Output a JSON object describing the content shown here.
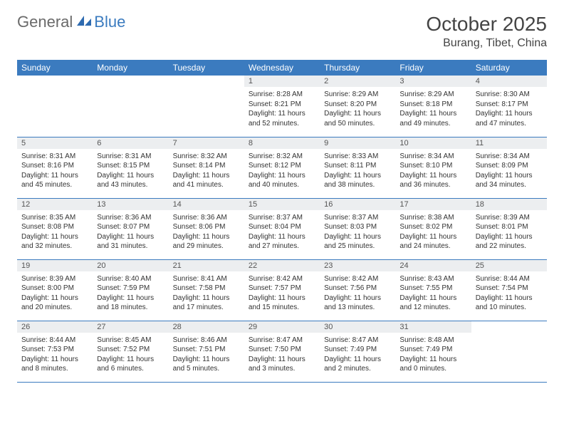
{
  "brand": {
    "part1": "General",
    "part2": "Blue"
  },
  "title": "October 2025",
  "location": "Burang, Tibet, China",
  "colors": {
    "header_bg": "#3b7bbf",
    "header_text": "#ffffff",
    "daynum_bg": "#eceef0",
    "border": "#3b7bbf",
    "text": "#333333",
    "logo_gray": "#6a6a6a",
    "logo_blue": "#3b7bbf",
    "page_bg": "#ffffff"
  },
  "fonts": {
    "title_size_pt": 21,
    "location_size_pt": 12,
    "dayheader_size_pt": 9,
    "cell_size_pt": 7.5
  },
  "day_headers": [
    "Sunday",
    "Monday",
    "Tuesday",
    "Wednesday",
    "Thursday",
    "Friday",
    "Saturday"
  ],
  "weeks": [
    [
      {
        "n": "",
        "sunrise": "",
        "sunset": "",
        "daylight": ""
      },
      {
        "n": "",
        "sunrise": "",
        "sunset": "",
        "daylight": ""
      },
      {
        "n": "",
        "sunrise": "",
        "sunset": "",
        "daylight": ""
      },
      {
        "n": "1",
        "sunrise": "Sunrise: 8:28 AM",
        "sunset": "Sunset: 8:21 PM",
        "daylight": "Daylight: 11 hours and 52 minutes."
      },
      {
        "n": "2",
        "sunrise": "Sunrise: 8:29 AM",
        "sunset": "Sunset: 8:20 PM",
        "daylight": "Daylight: 11 hours and 50 minutes."
      },
      {
        "n": "3",
        "sunrise": "Sunrise: 8:29 AM",
        "sunset": "Sunset: 8:18 PM",
        "daylight": "Daylight: 11 hours and 49 minutes."
      },
      {
        "n": "4",
        "sunrise": "Sunrise: 8:30 AM",
        "sunset": "Sunset: 8:17 PM",
        "daylight": "Daylight: 11 hours and 47 minutes."
      }
    ],
    [
      {
        "n": "5",
        "sunrise": "Sunrise: 8:31 AM",
        "sunset": "Sunset: 8:16 PM",
        "daylight": "Daylight: 11 hours and 45 minutes."
      },
      {
        "n": "6",
        "sunrise": "Sunrise: 8:31 AM",
        "sunset": "Sunset: 8:15 PM",
        "daylight": "Daylight: 11 hours and 43 minutes."
      },
      {
        "n": "7",
        "sunrise": "Sunrise: 8:32 AM",
        "sunset": "Sunset: 8:14 PM",
        "daylight": "Daylight: 11 hours and 41 minutes."
      },
      {
        "n": "8",
        "sunrise": "Sunrise: 8:32 AM",
        "sunset": "Sunset: 8:12 PM",
        "daylight": "Daylight: 11 hours and 40 minutes."
      },
      {
        "n": "9",
        "sunrise": "Sunrise: 8:33 AM",
        "sunset": "Sunset: 8:11 PM",
        "daylight": "Daylight: 11 hours and 38 minutes."
      },
      {
        "n": "10",
        "sunrise": "Sunrise: 8:34 AM",
        "sunset": "Sunset: 8:10 PM",
        "daylight": "Daylight: 11 hours and 36 minutes."
      },
      {
        "n": "11",
        "sunrise": "Sunrise: 8:34 AM",
        "sunset": "Sunset: 8:09 PM",
        "daylight": "Daylight: 11 hours and 34 minutes."
      }
    ],
    [
      {
        "n": "12",
        "sunrise": "Sunrise: 8:35 AM",
        "sunset": "Sunset: 8:08 PM",
        "daylight": "Daylight: 11 hours and 32 minutes."
      },
      {
        "n": "13",
        "sunrise": "Sunrise: 8:36 AM",
        "sunset": "Sunset: 8:07 PM",
        "daylight": "Daylight: 11 hours and 31 minutes."
      },
      {
        "n": "14",
        "sunrise": "Sunrise: 8:36 AM",
        "sunset": "Sunset: 8:06 PM",
        "daylight": "Daylight: 11 hours and 29 minutes."
      },
      {
        "n": "15",
        "sunrise": "Sunrise: 8:37 AM",
        "sunset": "Sunset: 8:04 PM",
        "daylight": "Daylight: 11 hours and 27 minutes."
      },
      {
        "n": "16",
        "sunrise": "Sunrise: 8:37 AM",
        "sunset": "Sunset: 8:03 PM",
        "daylight": "Daylight: 11 hours and 25 minutes."
      },
      {
        "n": "17",
        "sunrise": "Sunrise: 8:38 AM",
        "sunset": "Sunset: 8:02 PM",
        "daylight": "Daylight: 11 hours and 24 minutes."
      },
      {
        "n": "18",
        "sunrise": "Sunrise: 8:39 AM",
        "sunset": "Sunset: 8:01 PM",
        "daylight": "Daylight: 11 hours and 22 minutes."
      }
    ],
    [
      {
        "n": "19",
        "sunrise": "Sunrise: 8:39 AM",
        "sunset": "Sunset: 8:00 PM",
        "daylight": "Daylight: 11 hours and 20 minutes."
      },
      {
        "n": "20",
        "sunrise": "Sunrise: 8:40 AM",
        "sunset": "Sunset: 7:59 PM",
        "daylight": "Daylight: 11 hours and 18 minutes."
      },
      {
        "n": "21",
        "sunrise": "Sunrise: 8:41 AM",
        "sunset": "Sunset: 7:58 PM",
        "daylight": "Daylight: 11 hours and 17 minutes."
      },
      {
        "n": "22",
        "sunrise": "Sunrise: 8:42 AM",
        "sunset": "Sunset: 7:57 PM",
        "daylight": "Daylight: 11 hours and 15 minutes."
      },
      {
        "n": "23",
        "sunrise": "Sunrise: 8:42 AM",
        "sunset": "Sunset: 7:56 PM",
        "daylight": "Daylight: 11 hours and 13 minutes."
      },
      {
        "n": "24",
        "sunrise": "Sunrise: 8:43 AM",
        "sunset": "Sunset: 7:55 PM",
        "daylight": "Daylight: 11 hours and 12 minutes."
      },
      {
        "n": "25",
        "sunrise": "Sunrise: 8:44 AM",
        "sunset": "Sunset: 7:54 PM",
        "daylight": "Daylight: 11 hours and 10 minutes."
      }
    ],
    [
      {
        "n": "26",
        "sunrise": "Sunrise: 8:44 AM",
        "sunset": "Sunset: 7:53 PM",
        "daylight": "Daylight: 11 hours and 8 minutes."
      },
      {
        "n": "27",
        "sunrise": "Sunrise: 8:45 AM",
        "sunset": "Sunset: 7:52 PM",
        "daylight": "Daylight: 11 hours and 6 minutes."
      },
      {
        "n": "28",
        "sunrise": "Sunrise: 8:46 AM",
        "sunset": "Sunset: 7:51 PM",
        "daylight": "Daylight: 11 hours and 5 minutes."
      },
      {
        "n": "29",
        "sunrise": "Sunrise: 8:47 AM",
        "sunset": "Sunset: 7:50 PM",
        "daylight": "Daylight: 11 hours and 3 minutes."
      },
      {
        "n": "30",
        "sunrise": "Sunrise: 8:47 AM",
        "sunset": "Sunset: 7:49 PM",
        "daylight": "Daylight: 11 hours and 2 minutes."
      },
      {
        "n": "31",
        "sunrise": "Sunrise: 8:48 AM",
        "sunset": "Sunset: 7:49 PM",
        "daylight": "Daylight: 11 hours and 0 minutes."
      },
      {
        "n": "",
        "sunrise": "",
        "sunset": "",
        "daylight": ""
      }
    ]
  ]
}
